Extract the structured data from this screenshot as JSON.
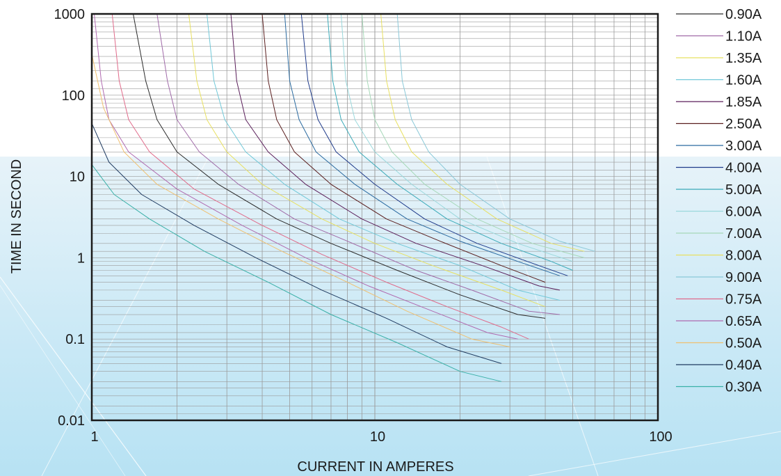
{
  "chart_data": {
    "type": "line",
    "title": "",
    "xlabel": "CURRENT IN AMPERES",
    "ylabel": "TIME IN SECOND",
    "x_scale": "log",
    "y_scale": "log",
    "xlim": [
      1,
      100
    ],
    "ylim": [
      0.01,
      1000
    ],
    "x_ticks": [
      "1",
      "10",
      "100"
    ],
    "y_ticks": [
      "0.01",
      "0.1",
      "1",
      "10",
      "100",
      "1000"
    ],
    "grid": true,
    "legend_position": "right",
    "series": [
      {
        "name": "0.90A",
        "color": "#2a2a2a",
        "points": [
          [
            1.4,
            1000
          ],
          [
            1.55,
            150
          ],
          [
            1.7,
            50
          ],
          [
            2.0,
            20
          ],
          [
            2.8,
            8
          ],
          [
            4.5,
            3
          ],
          [
            7,
            1.5
          ],
          [
            12,
            0.7
          ],
          [
            20,
            0.35
          ],
          [
            32,
            0.2
          ],
          [
            40,
            0.18
          ]
        ]
      },
      {
        "name": "1.10A",
        "color": "#a06aa8",
        "points": [
          [
            1.7,
            1000
          ],
          [
            1.85,
            150
          ],
          [
            2.0,
            50
          ],
          [
            2.4,
            20
          ],
          [
            3.3,
            8
          ],
          [
            5.2,
            3
          ],
          [
            8,
            1.6
          ],
          [
            14,
            0.7
          ],
          [
            22,
            0.4
          ],
          [
            35,
            0.22
          ],
          [
            45,
            0.2
          ]
        ]
      },
      {
        "name": "1.35A",
        "color": "#e8e060",
        "points": [
          [
            2.2,
            1000
          ],
          [
            2.35,
            150
          ],
          [
            2.55,
            50
          ],
          [
            3.0,
            20
          ],
          [
            4.0,
            8
          ],
          [
            6.5,
            3
          ],
          [
            10,
            1.5
          ],
          [
            16,
            0.8
          ],
          [
            28,
            0.4
          ],
          [
            40,
            0.25
          ]
        ]
      },
      {
        "name": "1.60A",
        "color": "#70c8d8",
        "points": [
          [
            2.55,
            1000
          ],
          [
            2.7,
            150
          ],
          [
            2.95,
            50
          ],
          [
            3.5,
            20
          ],
          [
            4.8,
            8
          ],
          [
            7.5,
            3
          ],
          [
            12,
            1.5
          ],
          [
            20,
            0.8
          ],
          [
            32,
            0.4
          ],
          [
            45,
            0.3
          ]
        ]
      },
      {
        "name": "1.85A",
        "color": "#5a1e5a",
        "points": [
          [
            3.1,
            1000
          ],
          [
            3.25,
            150
          ],
          [
            3.5,
            50
          ],
          [
            4.2,
            20
          ],
          [
            5.7,
            8
          ],
          [
            9,
            3
          ],
          [
            14,
            1.5
          ],
          [
            24,
            0.8
          ],
          [
            38,
            0.45
          ],
          [
            45,
            0.4
          ]
        ]
      },
      {
        "name": "2.50A",
        "color": "#5a1e1e",
        "points": [
          [
            4.0,
            1000
          ],
          [
            4.2,
            150
          ],
          [
            4.5,
            50
          ],
          [
            5.2,
            20
          ],
          [
            7,
            8
          ],
          [
            11,
            3
          ],
          [
            17,
            1.6
          ],
          [
            28,
            0.8
          ],
          [
            40,
            0.5
          ]
        ]
      },
      {
        "name": "3.00A",
        "color": "#2a6aa0",
        "points": [
          [
            4.8,
            1000
          ],
          [
            5.0,
            150
          ],
          [
            5.4,
            50
          ],
          [
            6.2,
            20
          ],
          [
            8.5,
            8
          ],
          [
            13,
            3
          ],
          [
            20,
            1.6
          ],
          [
            32,
            0.9
          ],
          [
            45,
            0.6
          ]
        ]
      },
      {
        "name": "4.00A",
        "color": "#1e3a8a",
        "points": [
          [
            5.5,
            1000
          ],
          [
            5.8,
            150
          ],
          [
            6.3,
            50
          ],
          [
            7.3,
            20
          ],
          [
            10,
            8
          ],
          [
            15,
            3
          ],
          [
            23,
            1.5
          ],
          [
            38,
            0.8
          ],
          [
            48,
            0.6
          ]
        ]
      },
      {
        "name": "5.00A",
        "color": "#3aaab8",
        "points": [
          [
            6.8,
            1000
          ],
          [
            7.1,
            150
          ],
          [
            7.6,
            50
          ],
          [
            8.8,
            20
          ],
          [
            12,
            8
          ],
          [
            18,
            3
          ],
          [
            28,
            1.5
          ],
          [
            42,
            0.9
          ],
          [
            50,
            0.7
          ]
        ]
      },
      {
        "name": "6.00A",
        "color": "#9ad8dc",
        "points": [
          [
            7.6,
            1000
          ],
          [
            7.9,
            150
          ],
          [
            8.5,
            50
          ],
          [
            10,
            20
          ],
          [
            13.5,
            8
          ],
          [
            20,
            3
          ],
          [
            32,
            1.5
          ],
          [
            50,
            0.9
          ]
        ]
      },
      {
        "name": "7.00A",
        "color": "#a6d8b8",
        "points": [
          [
            9.0,
            1000
          ],
          [
            9.4,
            150
          ],
          [
            10,
            50
          ],
          [
            11.5,
            20
          ],
          [
            15,
            8
          ],
          [
            23,
            3
          ],
          [
            36,
            1.5
          ],
          [
            55,
            1.0
          ]
        ]
      },
      {
        "name": "8.00A",
        "color": "#e8e060",
        "points": [
          [
            10.5,
            1000
          ],
          [
            11,
            150
          ],
          [
            11.8,
            50
          ],
          [
            13.5,
            20
          ],
          [
            18,
            8
          ],
          [
            27,
            3
          ],
          [
            42,
            1.5
          ],
          [
            55,
            1.2
          ]
        ]
      },
      {
        "name": "9.00A",
        "color": "#8ac8d8",
        "points": [
          [
            12.0,
            1000
          ],
          [
            12.5,
            150
          ],
          [
            13.5,
            50
          ],
          [
            15.5,
            20
          ],
          [
            20,
            8
          ],
          [
            30,
            3
          ],
          [
            45,
            1.6
          ],
          [
            60,
            1.2
          ]
        ]
      },
      {
        "name": "0.75A",
        "color": "#e06a8a",
        "points": [
          [
            1.18,
            1000
          ],
          [
            1.25,
            150
          ],
          [
            1.35,
            50
          ],
          [
            1.6,
            20
          ],
          [
            2.3,
            7
          ],
          [
            4,
            2.5
          ],
          [
            6.5,
            1.1
          ],
          [
            11,
            0.5
          ],
          [
            18,
            0.25
          ],
          [
            28,
            0.14
          ],
          [
            35,
            0.1
          ]
        ]
      },
      {
        "name": "0.65A",
        "color": "#b06ab0",
        "points": [
          [
            1.02,
            1000
          ],
          [
            1.08,
            150
          ],
          [
            1.15,
            50
          ],
          [
            1.35,
            20
          ],
          [
            2.0,
            7
          ],
          [
            3.4,
            2.5
          ],
          [
            5.7,
            1.0
          ],
          [
            9.5,
            0.45
          ],
          [
            16,
            0.22
          ],
          [
            25,
            0.12
          ],
          [
            32,
            0.1
          ]
        ]
      },
      {
        "name": "0.50A",
        "color": "#f0c070",
        "points": [
          [
            1,
            320
          ],
          [
            1.1,
            70
          ],
          [
            1.3,
            20
          ],
          [
            1.7,
            8
          ],
          [
            2.8,
            3
          ],
          [
            4.7,
            1.2
          ],
          [
            8,
            0.5
          ],
          [
            13,
            0.22
          ],
          [
            22,
            0.1
          ],
          [
            30,
            0.08
          ]
        ]
      },
      {
        "name": "0.40A",
        "color": "#1e3a60",
        "points": [
          [
            1,
            45
          ],
          [
            1.15,
            15
          ],
          [
            1.5,
            6
          ],
          [
            2.3,
            2.5
          ],
          [
            3.8,
            1.0
          ],
          [
            6.5,
            0.4
          ],
          [
            11,
            0.18
          ],
          [
            18,
            0.08
          ],
          [
            28,
            0.05
          ]
        ]
      },
      {
        "name": "0.30A",
        "color": "#3ab0a8",
        "points": [
          [
            1,
            14
          ],
          [
            1.2,
            6
          ],
          [
            1.6,
            3
          ],
          [
            2.5,
            1.2
          ],
          [
            4.2,
            0.5
          ],
          [
            7,
            0.2
          ],
          [
            12,
            0.09
          ],
          [
            20,
            0.04
          ],
          [
            28,
            0.03
          ]
        ]
      }
    ]
  }
}
